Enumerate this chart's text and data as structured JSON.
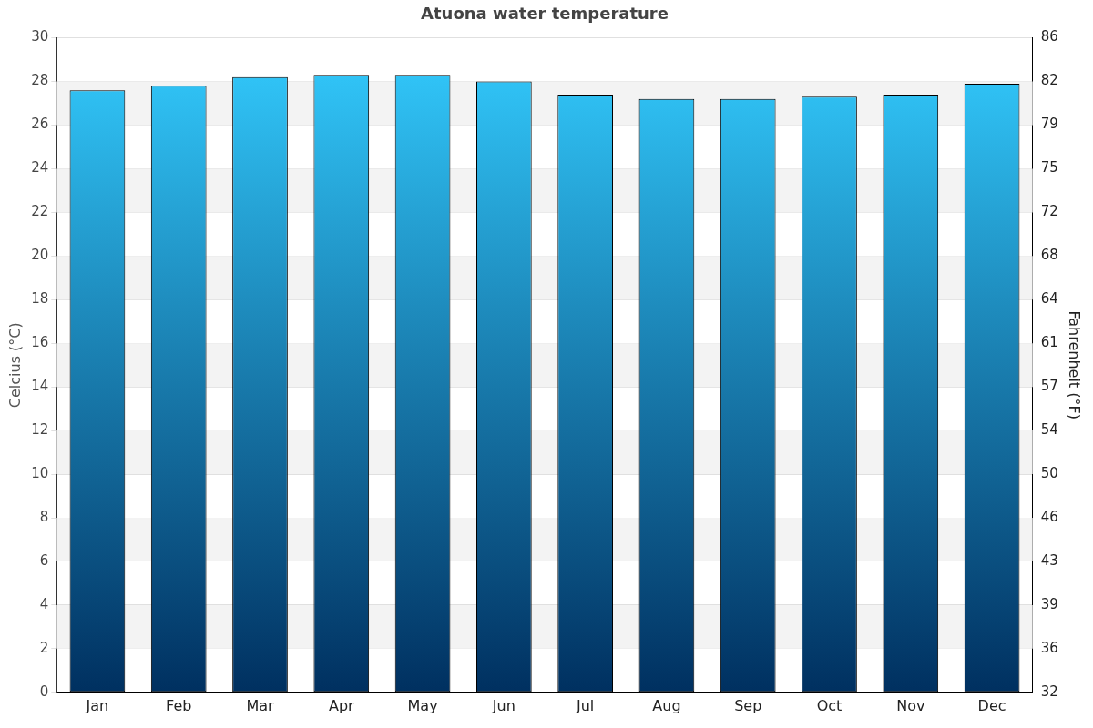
{
  "chart_data": {
    "type": "bar",
    "title": "Atuona water temperature",
    "categories": [
      "Jan",
      "Feb",
      "Mar",
      "Apr",
      "May",
      "Jun",
      "Jul",
      "Aug",
      "Sep",
      "Oct",
      "Nov",
      "Dec"
    ],
    "values": [
      27.6,
      27.8,
      28.2,
      28.3,
      28.3,
      28.0,
      27.4,
      27.2,
      27.2,
      27.3,
      27.4,
      27.9
    ],
    "color": "#33ccff",
    "ylabel": "Celcius (°C)",
    "y2label": "Fahrenheit (°F)",
    "ylim": [
      0,
      30
    ],
    "yticks": [
      0,
      2,
      4,
      6,
      8,
      10,
      12,
      14,
      16,
      18,
      20,
      22,
      24,
      26,
      28,
      30
    ],
    "y2lim": [
      32,
      86
    ],
    "y2ticks": [
      32,
      {
        "value": 35.6,
        "label": "36"
      },
      {
        "value": 39.2,
        "label": "39"
      },
      {
        "value": 42.8,
        "label": "43"
      },
      {
        "value": 46.4,
        "label": "46"
      },
      50,
      {
        "value": 53.6,
        "label": "54"
      },
      {
        "value": 57.2,
        "label": "57"
      },
      {
        "value": 60.8,
        "label": "61"
      },
      {
        "value": 64.4,
        "label": "64"
      },
      68,
      {
        "value": 71.6,
        "label": "72"
      },
      {
        "value": 75.2,
        "label": "75"
      },
      {
        "value": 78.8,
        "label": "79"
      },
      {
        "value": 82.4,
        "label": "82"
      },
      86
    ],
    "grid": "y",
    "legend": false
  }
}
